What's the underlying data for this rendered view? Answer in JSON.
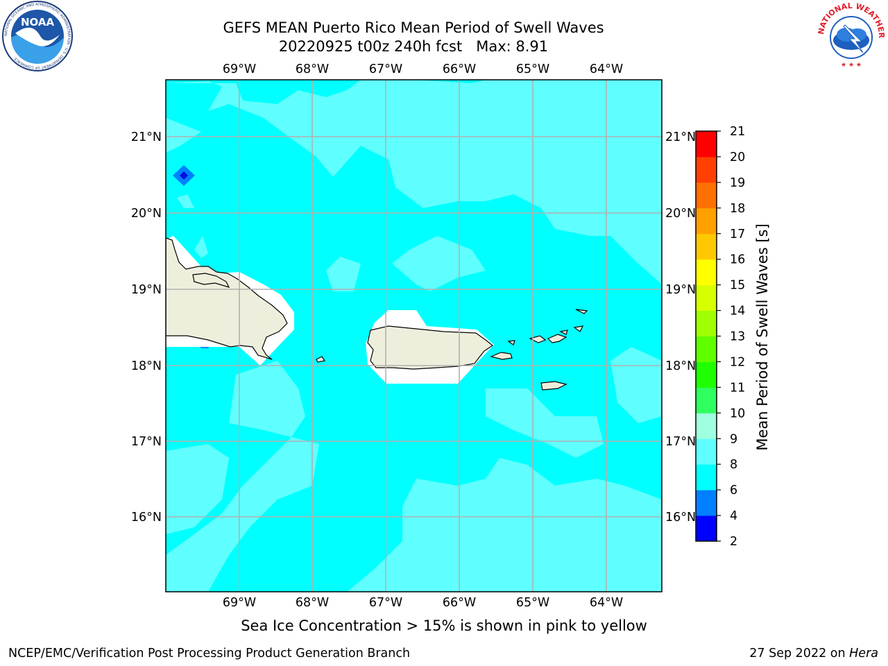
{
  "title": {
    "line1": "GEFS MEAN Puerto Rico Mean Period of Swell Waves",
    "line2": "20220925 t00z 240h fcst   Max: 8.91"
  },
  "map": {
    "lon_labels": [
      "69°W",
      "68°W",
      "67°W",
      "66°W",
      "65°W",
      "64°W"
    ],
    "lat_labels": [
      "21°N",
      "20°N",
      "19°N",
      "18°N",
      "17°N",
      "16°N"
    ],
    "ocean_base_color": "#00ffff",
    "field_light_color": "#60ffff",
    "land_color": "#eeeedd",
    "masked_color": "#ffffff",
    "grid_color": "#b0b0b0"
  },
  "colorbar": {
    "label": "Mean Period of Swell Waves [s]",
    "ticks": [
      "2",
      "4",
      "6",
      "8",
      "9",
      "10",
      "11",
      "12",
      "13",
      "14",
      "15",
      "16",
      "17",
      "18",
      "19",
      "20",
      "21"
    ],
    "colors": [
      "#0000ff",
      "#0080ff",
      "#00ffff",
      "#60ffff",
      "#a0ffe0",
      "#30ff60",
      "#20ff00",
      "#60ff00",
      "#a0ff00",
      "#d8ff00",
      "#ffff00",
      "#ffc800",
      "#ffa000",
      "#ff7000",
      "#ff4000",
      "#ff0000"
    ]
  },
  "footer": {
    "note": "Sea Ice Concentration > 15% is shown in pink to yellow",
    "left": "NCEP/EMC/Verification Post Processing Product Generation Branch",
    "date": "27 Sep 2022 on ",
    "host": "Hera"
  },
  "logos": {
    "noaa_text": "NOAA",
    "noaa_ring": "NATIONAL OCEANIC AND ATMOSPHERIC ADMINISTRATION · U.S. DEPARTMENT OF COMMERCE",
    "nws_ring": "NATIONAL WEATHER SERVICE"
  }
}
